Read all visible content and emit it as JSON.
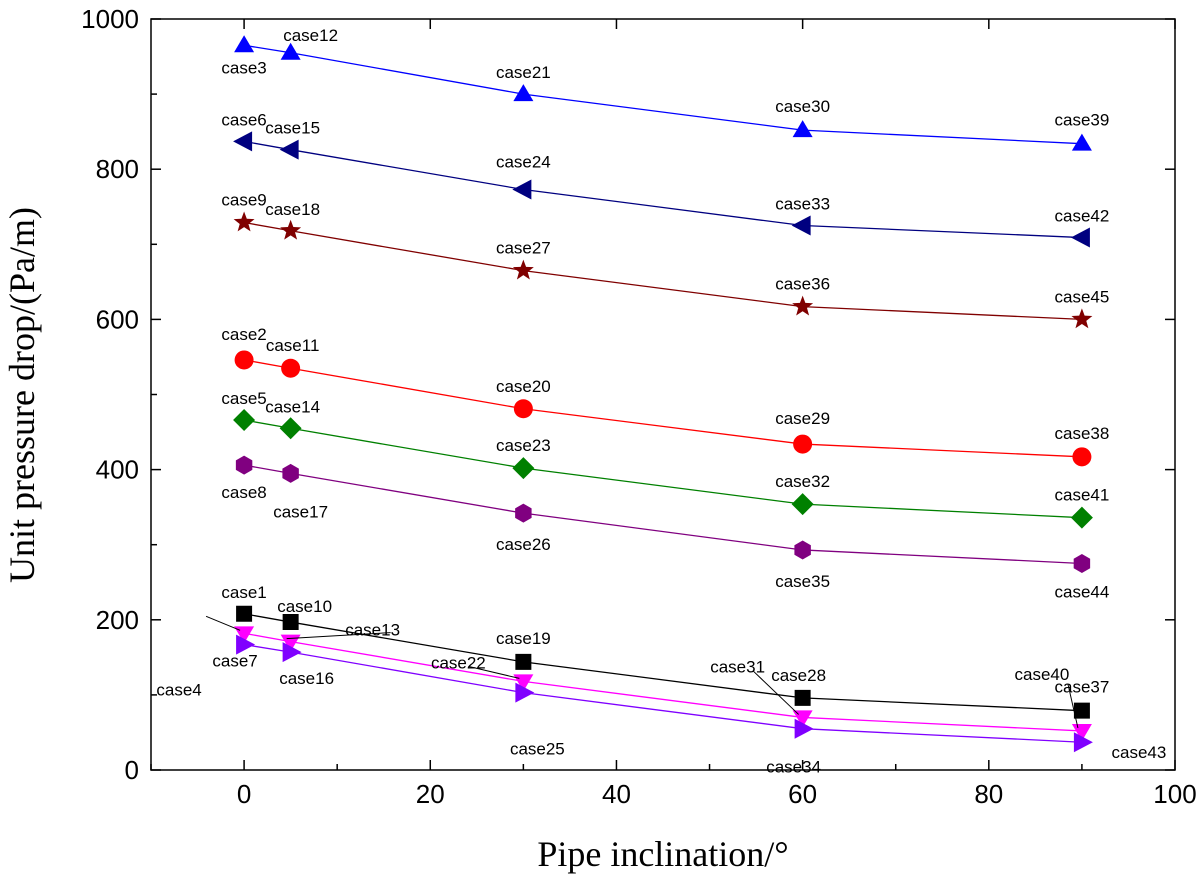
{
  "chart_data": {
    "type": "line",
    "title": "",
    "xlabel": "Pipe inclination/°",
    "ylabel": "Unit pressure drop/(Pa/m)",
    "xlim": [
      -10,
      100
    ],
    "ylim": [
      0,
      1000
    ],
    "xticks": [
      0,
      20,
      40,
      60,
      80,
      100
    ],
    "yticks": [
      0,
      200,
      400,
      600,
      800,
      1000
    ],
    "grid": false,
    "x": [
      0,
      5,
      30,
      60,
      90
    ],
    "series": [
      {
        "name": "series-triangle-up",
        "color": "#0000ff",
        "marker": "triangle-up",
        "values": [
          965,
          955,
          900,
          852,
          834
        ],
        "labels": [
          "case3",
          "case12",
          "case21",
          "case30",
          "case39"
        ]
      },
      {
        "name": "series-triangle-left",
        "color": "#000080",
        "marker": "triangle-left",
        "values": [
          837,
          826,
          773,
          725,
          709
        ],
        "labels": [
          "case6",
          "case15",
          "case24",
          "case33",
          "case42"
        ]
      },
      {
        "name": "series-star",
        "color": "#800000",
        "marker": "star",
        "values": [
          729,
          718,
          665,
          617,
          600
        ],
        "labels": [
          "case9",
          "case18",
          "case27",
          "case36",
          "case45"
        ]
      },
      {
        "name": "series-circle",
        "color": "#ff0000",
        "marker": "circle",
        "values": [
          546,
          535,
          481,
          434,
          417
        ],
        "labels": [
          "case2",
          "case11",
          "case20",
          "case29",
          "case38"
        ]
      },
      {
        "name": "series-diamond",
        "color": "#008000",
        "marker": "diamond",
        "values": [
          466,
          455,
          402,
          354,
          336
        ],
        "labels": [
          "case5",
          "case14",
          "case23",
          "case32",
          "case41"
        ]
      },
      {
        "name": "series-hexagon",
        "color": "#800080",
        "marker": "hexagon",
        "values": [
          406,
          395,
          342,
          293,
          275
        ],
        "labels": [
          "case8",
          "case17",
          "case26",
          "case35",
          "case44"
        ]
      },
      {
        "name": "series-square",
        "color": "#000000",
        "marker": "square",
        "values": [
          208,
          197,
          144,
          96,
          79
        ],
        "labels": [
          "case1",
          "case10",
          "case19",
          "case28",
          "case37"
        ]
      },
      {
        "name": "series-triangle-down",
        "color": "#ff00ff",
        "marker": "triangle-down",
        "values": [
          182,
          171,
          118,
          70,
          52
        ],
        "labels": [
          "case4",
          "case13",
          "case22",
          "case31",
          "case40"
        ]
      },
      {
        "name": "series-triangle-right",
        "color": "#8000ff",
        "marker": "triangle-right",
        "values": [
          167,
          157,
          103,
          55,
          37
        ],
        "labels": [
          "case7",
          "case16",
          "case25",
          "case34",
          "case43"
        ]
      }
    ]
  }
}
